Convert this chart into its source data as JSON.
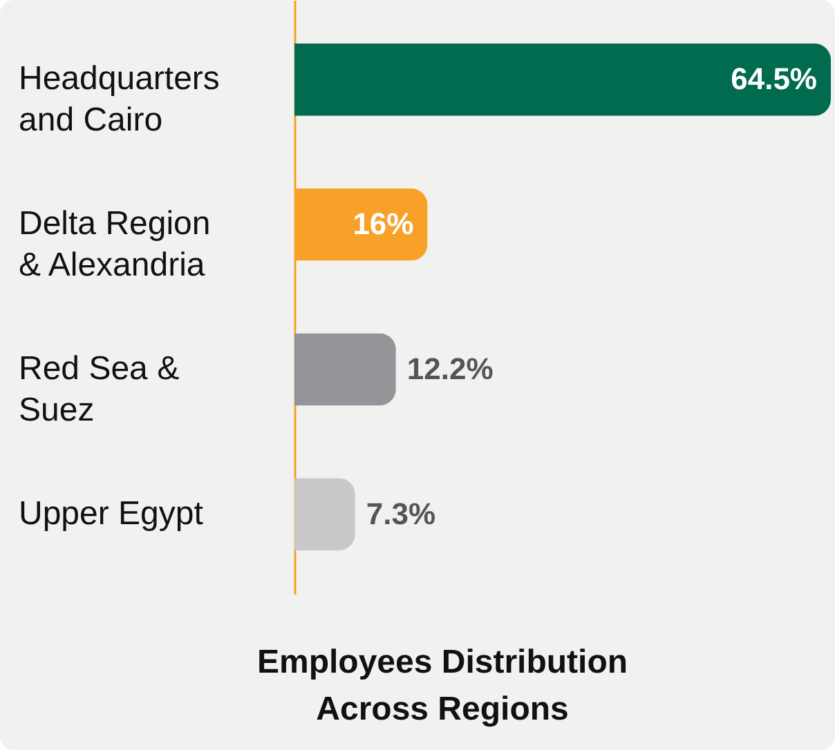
{
  "chart_data": {
    "type": "bar",
    "orientation": "horizontal",
    "title": "Employees Distribution Across Regions",
    "categories": [
      "Headquarters and Cairo",
      "Delta Region & Alexandria",
      "Red Sea & Suez",
      "Upper Egypt"
    ],
    "values": [
      64.5,
      16,
      12.2,
      7.3
    ],
    "value_labels": [
      "64.5%",
      "16%",
      "12.2%",
      "7.3%"
    ],
    "colors": [
      "#006b4f",
      "#f7a128",
      "#939598",
      "#c8c8c8"
    ]
  }
}
